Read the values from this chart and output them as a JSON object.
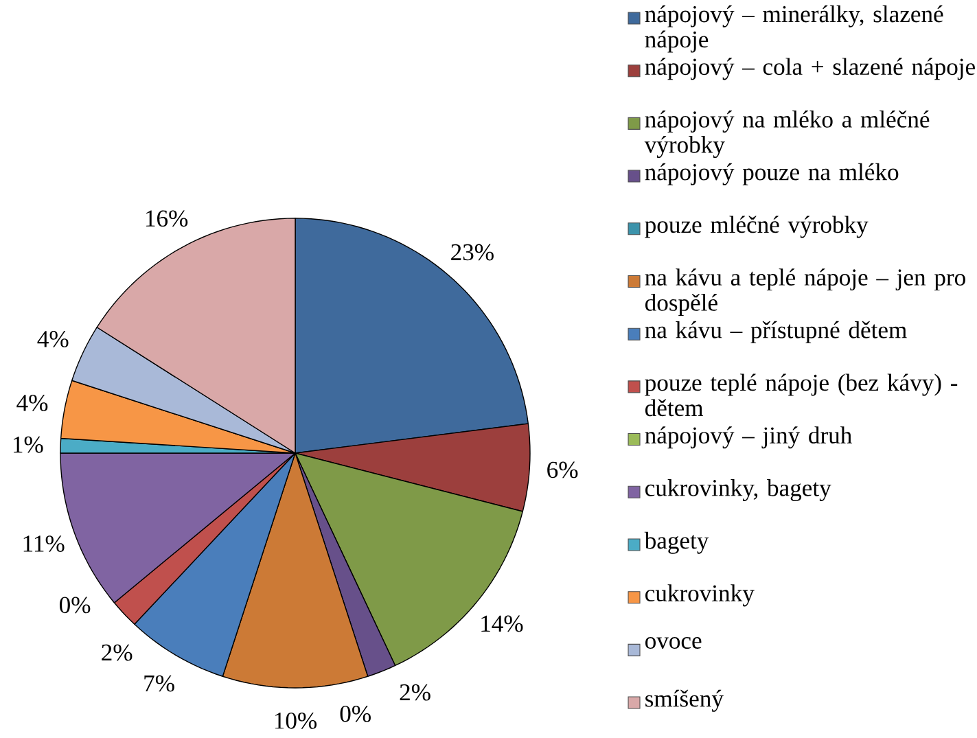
{
  "chart_data": {
    "type": "pie",
    "categories": [
      "nápojový – minerálky, slazené nápoje",
      "nápojový – cola + slazené nápoje",
      "nápojový na mléko a mléčné výrobky",
      "nápojový pouze na mléko",
      "pouze mléčné výrobky",
      "na kávu a teplé nápoje – jen pro dospělé",
      "na kávu – přístupné dětem",
      "pouze teplé nápoje (bez kávy) - dětem",
      "nápojový – jiný druh",
      "cukrovinky, bagety",
      "bagety",
      "cukrovinky",
      "ovoce",
      "smíšený"
    ],
    "values": [
      23,
      6,
      14,
      2,
      0,
      10,
      7,
      2,
      0,
      11,
      1,
      4,
      4,
      16
    ],
    "value_labels": [
      "23%",
      "6%",
      "14%",
      "2%",
      "0%",
      "10%",
      "7%",
      "2%",
      "0%",
      "11%",
      "1%",
      "4%",
      "4%",
      "16%"
    ],
    "colors": [
      "#3f6a9c",
      "#9c3f3d",
      "#7f9a48",
      "#67508a",
      "#3c93ab",
      "#cc7a36",
      "#4a7ebb",
      "#c0504d",
      "#9bbb59",
      "#8064a2",
      "#4bacc6",
      "#f79646",
      "#a9b9d8",
      "#d9a8a8"
    ],
    "legend": "right"
  }
}
